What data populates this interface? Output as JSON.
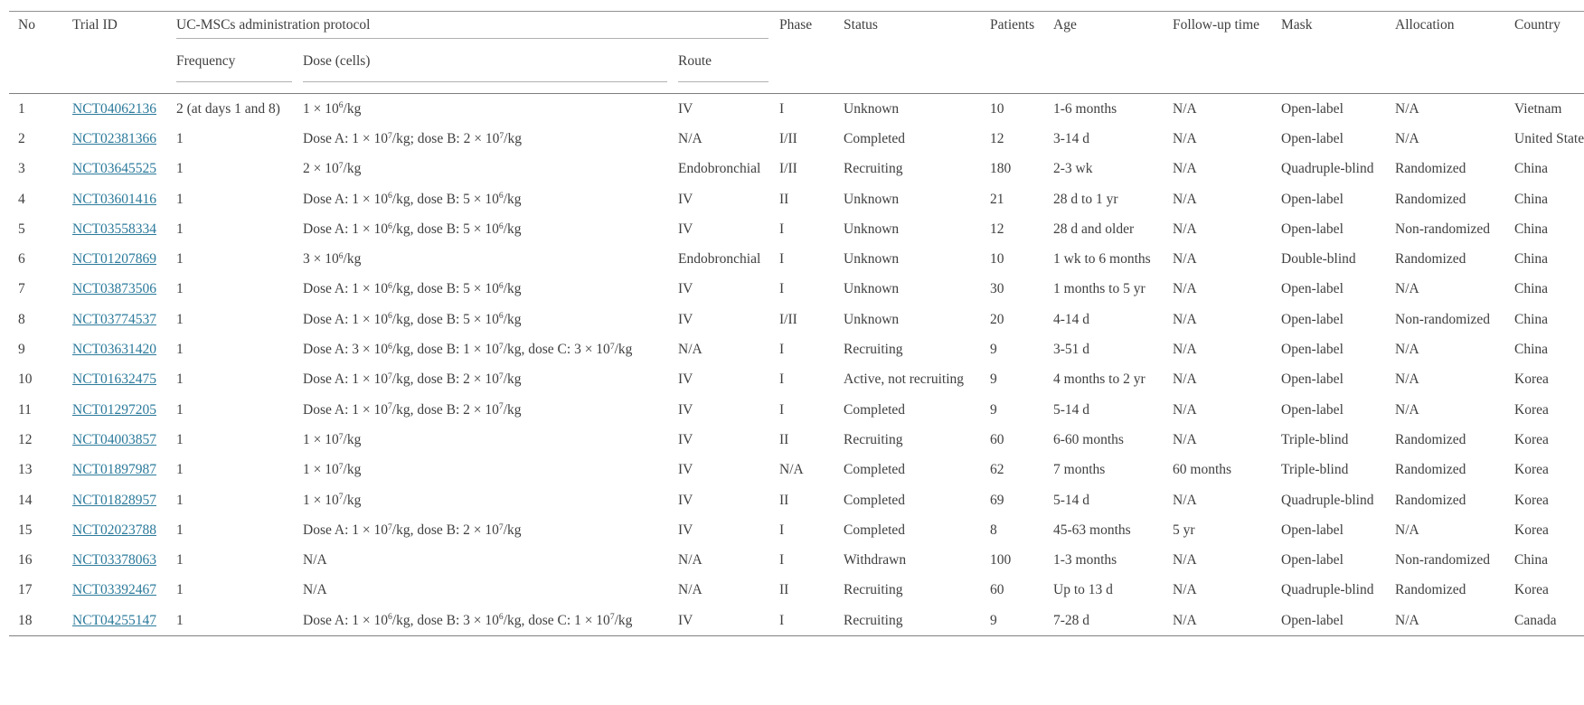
{
  "colors": {
    "link": "#2b7a9b",
    "text": "#3f3f3f",
    "border_strong": "#808080",
    "border_light": "#b0b0b0"
  },
  "table": {
    "group_header": "UC-MSCs administration protocol",
    "headers": {
      "no": "No",
      "trial_id": "Trial ID",
      "frequency": "Frequency",
      "dose": "Dose (cells)",
      "route": "Route",
      "phase": "Phase",
      "status": "Status",
      "patients": "Patients",
      "age": "Age",
      "followup": "Follow-up time",
      "mask": "Mask",
      "allocation": "Allocation",
      "country": "Country"
    },
    "rows": [
      {
        "no": "1",
        "trial_id": "NCT04062136",
        "frequency": "2 (at days 1 and 8)",
        "dose": "1 × 10^6/kg",
        "route": "IV",
        "phase": "I",
        "status": "Unknown",
        "patients": "10",
        "age": "1-6 months",
        "followup": "N/A",
        "mask": "Open-label",
        "allocation": "N/A",
        "country": "Vietnam"
      },
      {
        "no": "2",
        "trial_id": "NCT02381366",
        "frequency": "1",
        "dose": "Dose A: 1 × 10^7/kg; dose B: 2 × 10^7/kg",
        "route": "N/A",
        "phase": "I/II",
        "status": "Completed",
        "patients": "12",
        "age": "3-14 d",
        "followup": "N/A",
        "mask": "Open-label",
        "allocation": "N/A",
        "country": "United States"
      },
      {
        "no": "3",
        "trial_id": "NCT03645525",
        "frequency": "1",
        "dose": "2 × 10^7/kg",
        "route": "Endobronchial",
        "phase": "I/II",
        "status": "Recruiting",
        "patients": "180",
        "age": "2-3 wk",
        "followup": "N/A",
        "mask": "Quadruple-blind",
        "allocation": "Randomized",
        "country": "China"
      },
      {
        "no": "4",
        "trial_id": "NCT03601416",
        "frequency": "1",
        "dose": "Dose A: 1 × 10^6/kg, dose B: 5 × 10^6/kg",
        "route": "IV",
        "phase": "II",
        "status": "Unknown",
        "patients": "21",
        "age": "28 d to 1 yr",
        "followup": "N/A",
        "mask": "Open-label",
        "allocation": "Randomized",
        "country": "China"
      },
      {
        "no": "5",
        "trial_id": "NCT03558334",
        "frequency": "1",
        "dose": "Dose A: 1 × 10^6/kg, dose B: 5 × 10^6/kg",
        "route": "IV",
        "phase": "I",
        "status": "Unknown",
        "patients": "12",
        "age": "28 d and older",
        "followup": "N/A",
        "mask": "Open-label",
        "allocation": "Non-randomized",
        "country": "China"
      },
      {
        "no": "6",
        "trial_id": "NCT01207869",
        "frequency": "1",
        "dose": "3 × 10^6/kg",
        "route": "Endobronchial",
        "phase": "I",
        "status": "Unknown",
        "patients": "10",
        "age": "1 wk to 6 months",
        "followup": "N/A",
        "mask": "Double-blind",
        "allocation": "Randomized",
        "country": "China"
      },
      {
        "no": "7",
        "trial_id": "NCT03873506",
        "frequency": "1",
        "dose": "Dose A: 1 × 10^6/kg, dose B: 5 × 10^6/kg",
        "route": "IV",
        "phase": "I",
        "status": "Unknown",
        "patients": "30",
        "age": "1 months to 5 yr",
        "followup": "N/A",
        "mask": "Open-label",
        "allocation": "N/A",
        "country": "China"
      },
      {
        "no": "8",
        "trial_id": "NCT03774537",
        "frequency": "1",
        "dose": "Dose A: 1 × 10^6/kg, dose B: 5 × 10^6/kg",
        "route": "IV",
        "phase": "I/II",
        "status": "Unknown",
        "patients": "20",
        "age": "4-14 d",
        "followup": "N/A",
        "mask": "Open-label",
        "allocation": "Non-randomized",
        "country": "China"
      },
      {
        "no": "9",
        "trial_id": "NCT03631420",
        "frequency": "1",
        "dose": "Dose A: 3 × 10^6/kg, dose B: 1 × 10^7/kg, dose C: 3 × 10^7/kg",
        "route": "N/A",
        "phase": "I",
        "status": "Recruiting",
        "patients": "9",
        "age": "3-51 d",
        "followup": "N/A",
        "mask": "Open-label",
        "allocation": "N/A",
        "country": "China"
      },
      {
        "no": "10",
        "trial_id": "NCT01632475",
        "frequency": "1",
        "dose": "Dose A: 1 × 10^7/kg, dose B: 2 × 10^7/kg",
        "route": "IV",
        "phase": "I",
        "status": "Active, not recruiting",
        "patients": "9",
        "age": "4 months to 2 yr",
        "followup": "N/A",
        "mask": "Open-label",
        "allocation": "N/A",
        "country": "Korea"
      },
      {
        "no": "11",
        "trial_id": "NCT01297205",
        "frequency": "1",
        "dose": "Dose A: 1 × 10^7/kg, dose B: 2 × 10^7/kg",
        "route": "IV",
        "phase": "I",
        "status": "Completed",
        "patients": "9",
        "age": "5-14 d",
        "followup": "N/A",
        "mask": "Open-label",
        "allocation": "N/A",
        "country": "Korea"
      },
      {
        "no": "12",
        "trial_id": "NCT04003857",
        "frequency": "1",
        "dose": "1 × 10^7/kg",
        "route": "IV",
        "phase": "II",
        "status": "Recruiting",
        "patients": "60",
        "age": "6-60 months",
        "followup": "N/A",
        "mask": "Triple-blind",
        "allocation": "Randomized",
        "country": "Korea"
      },
      {
        "no": "13",
        "trial_id": "NCT01897987",
        "frequency": "1",
        "dose": "1 × 10^7/kg",
        "route": "IV",
        "phase": "N/A",
        "status": "Completed",
        "patients": "62",
        "age": "7 months",
        "followup": "60 months",
        "mask": "Triple-blind",
        "allocation": "Randomized",
        "country": "Korea"
      },
      {
        "no": "14",
        "trial_id": "NCT01828957",
        "frequency": "1",
        "dose": "1 × 10^7/kg",
        "route": "IV",
        "phase": "II",
        "status": "Completed",
        "patients": "69",
        "age": "5-14 d",
        "followup": "N/A",
        "mask": "Quadruple-blind",
        "allocation": "Randomized",
        "country": "Korea"
      },
      {
        "no": "15",
        "trial_id": "NCT02023788",
        "frequency": "1",
        "dose": "Dose A: 1 × 10^7/kg, dose B: 2 × 10^7/kg",
        "route": "IV",
        "phase": "I",
        "status": "Completed",
        "patients": "8",
        "age": "45-63 months",
        "followup": "5 yr",
        "mask": "Open-label",
        "allocation": "N/A",
        "country": "Korea"
      },
      {
        "no": "16",
        "trial_id": "NCT03378063",
        "frequency": "1",
        "dose": "N/A",
        "route": "N/A",
        "phase": "I",
        "status": "Withdrawn",
        "patients": "100",
        "age": "1-3 months",
        "followup": "N/A",
        "mask": "Open-label",
        "allocation": "Non-randomized",
        "country": "China"
      },
      {
        "no": "17",
        "trial_id": "NCT03392467",
        "frequency": "1",
        "dose": "N/A",
        "route": "N/A",
        "phase": "II",
        "status": "Recruiting",
        "patients": "60",
        "age": "Up to 13 d",
        "followup": "N/A",
        "mask": "Quadruple-blind",
        "allocation": "Randomized",
        "country": "Korea"
      },
      {
        "no": "18",
        "trial_id": "NCT04255147",
        "frequency": "1",
        "dose": "Dose A: 1 × 10^6/kg, dose B: 3 × 10^6/kg, dose C: 1 × 10^7/kg",
        "route": "IV",
        "phase": "I",
        "status": "Recruiting",
        "patients": "9",
        "age": "7-28 d",
        "followup": "N/A",
        "mask": "Open-label",
        "allocation": "N/A",
        "country": "Canada"
      }
    ]
  }
}
